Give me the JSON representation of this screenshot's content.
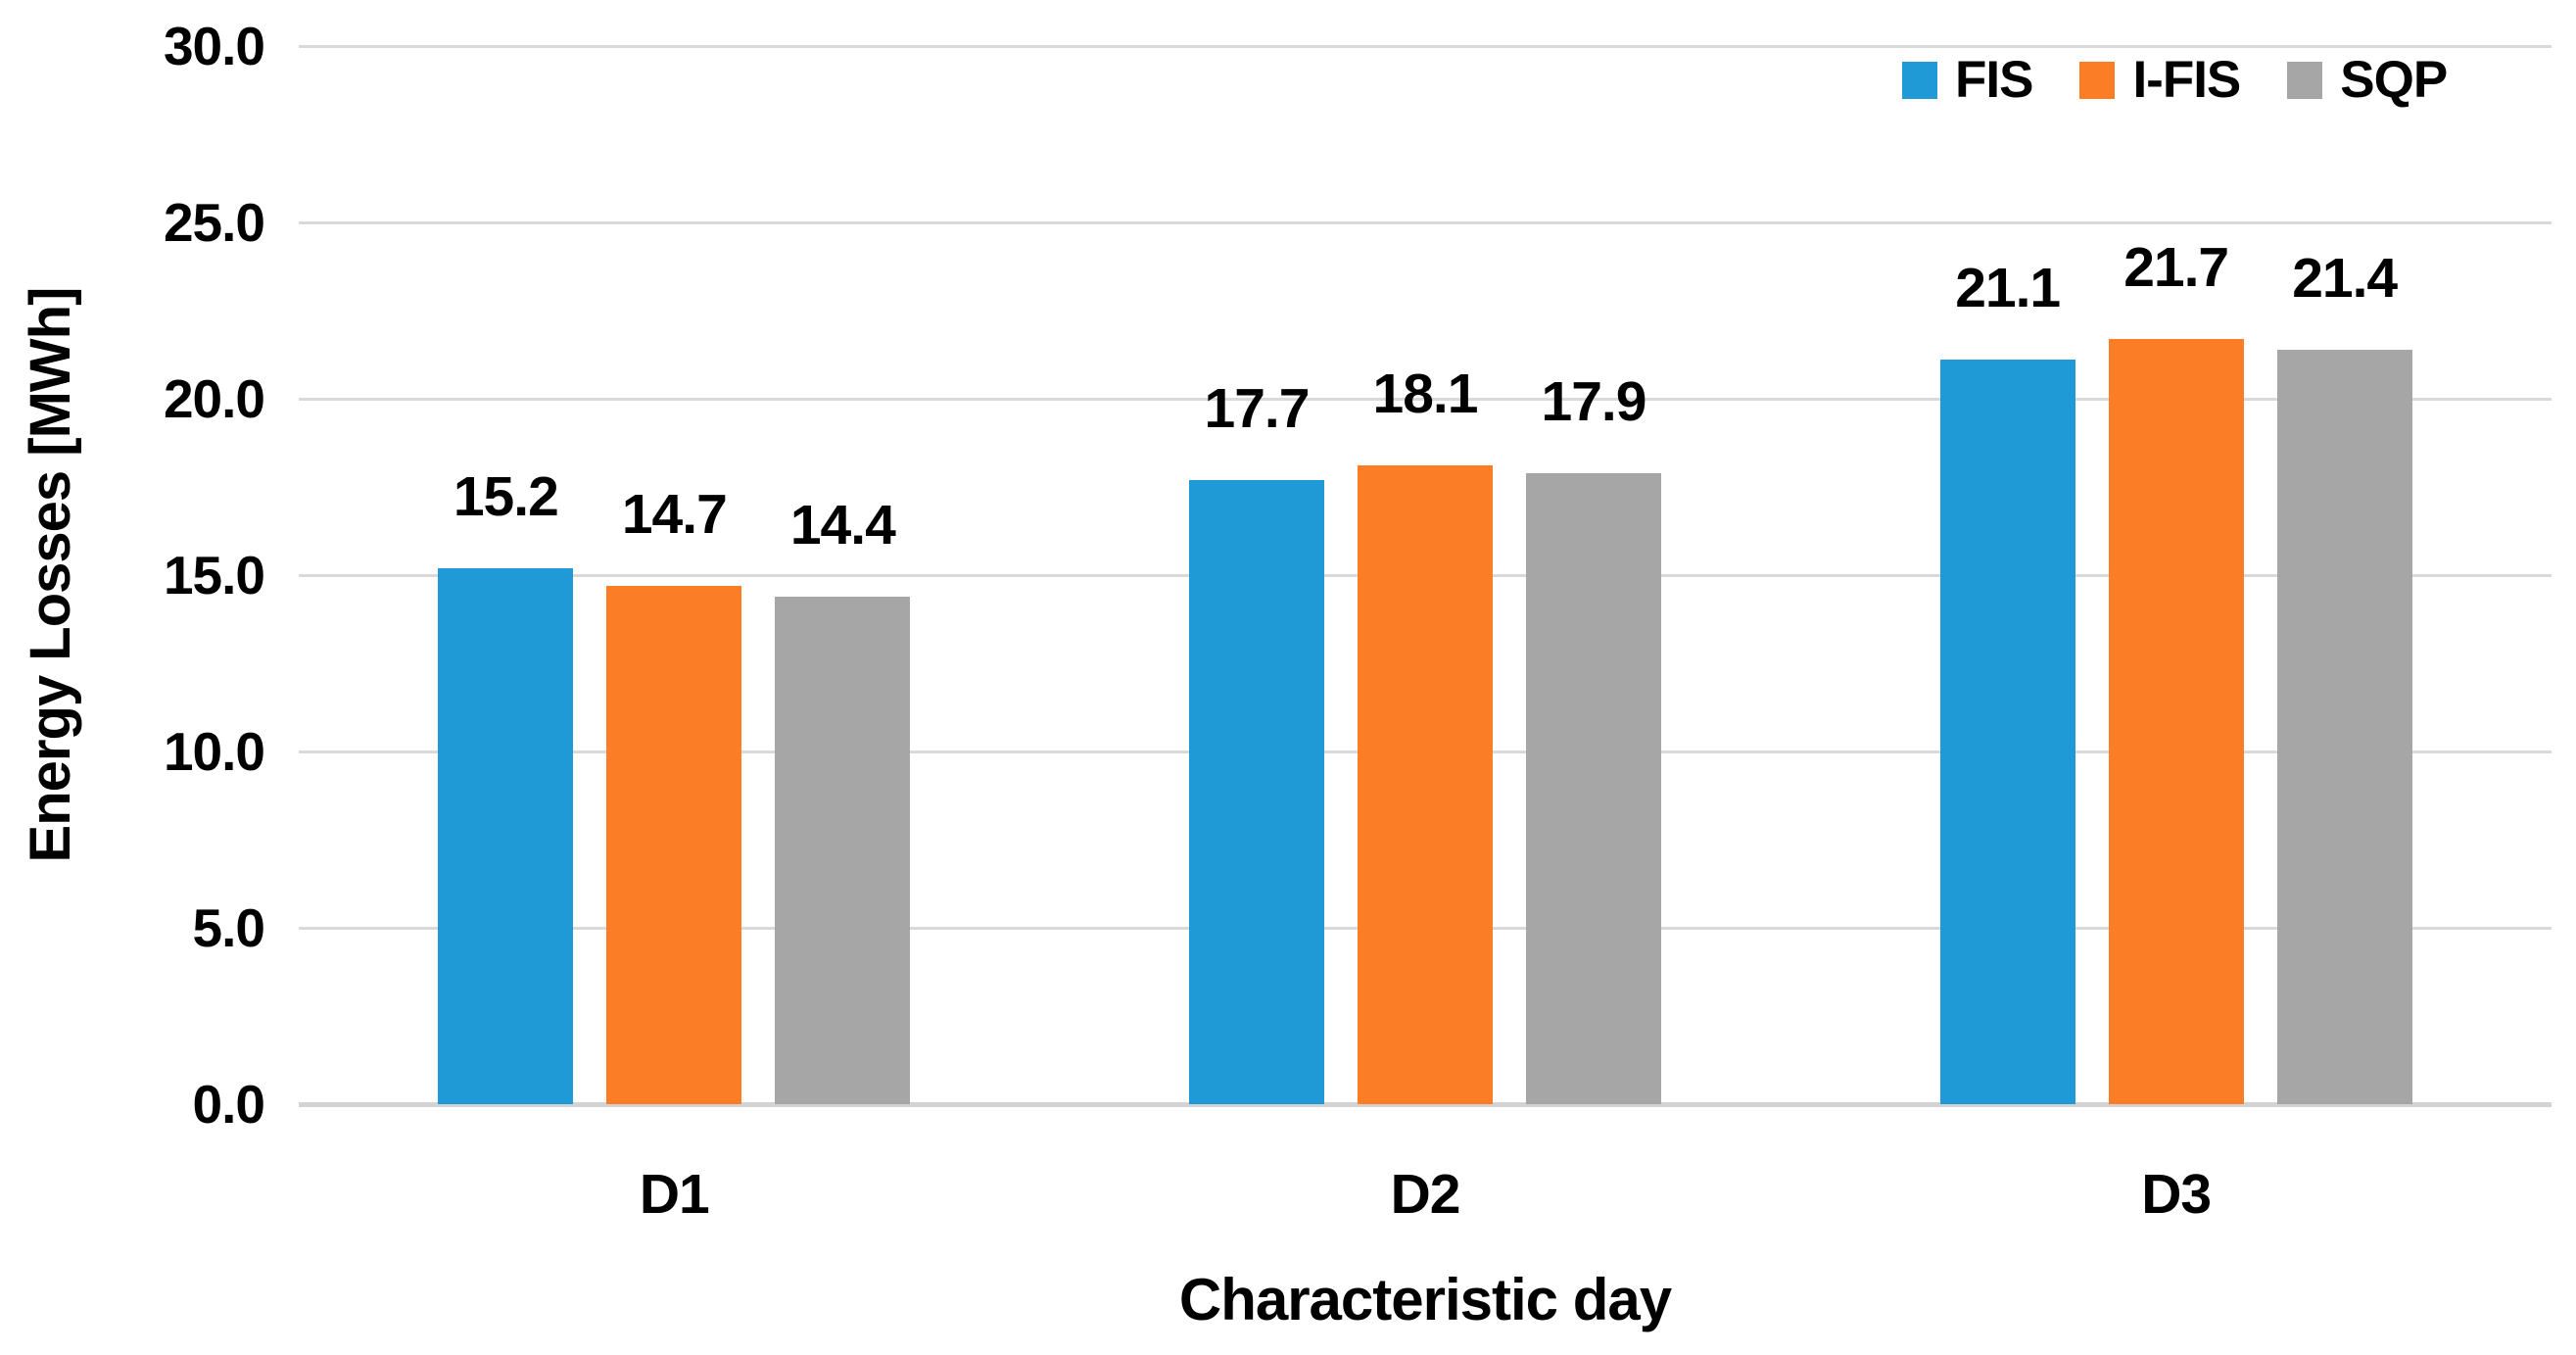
{
  "chart_data": {
    "type": "bar",
    "title": "",
    "xlabel": "Characteristic day",
    "ylabel": "Energy Losses [MWh]",
    "categories": [
      "D1",
      "D2",
      "D3"
    ],
    "series": [
      {
        "name": "FIS",
        "color": "#1F9AD7",
        "values": [
          15.2,
          17.7,
          21.1
        ],
        "data_labels": [
          "15.2",
          "17.7",
          "21.1"
        ]
      },
      {
        "name": "I-FIS",
        "color": "#FB7D26",
        "values": [
          14.7,
          18.1,
          21.7
        ],
        "data_labels": [
          "14.7",
          "18.1",
          "21.7"
        ]
      },
      {
        "name": "SQP",
        "color": "#A6A6A6",
        "values": [
          14.4,
          17.9,
          21.4
        ],
        "data_labels": [
          "14.4",
          "17.9",
          "21.4"
        ]
      }
    ],
    "ylim": [
      0,
      30
    ],
    "ytick_values": [
      0,
      5,
      10,
      15,
      20,
      25,
      30
    ],
    "ytick_labels": [
      "0.0",
      "5.0",
      "10.0",
      "15.0",
      "20.0",
      "25.0",
      "30.0"
    ],
    "grid": true,
    "legend_position": "top-right",
    "gridline_color": "#D9D9D9",
    "axis_line_color": "#D3D3D3",
    "text_color": "#000000",
    "background_color": "#FFFFFF"
  }
}
